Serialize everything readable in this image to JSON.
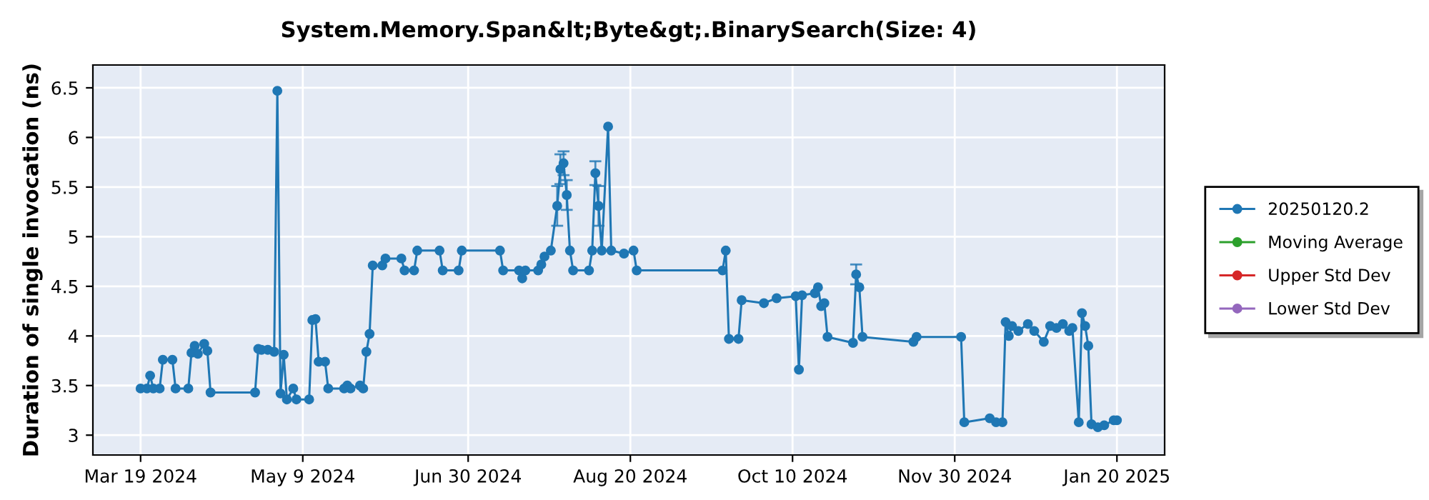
{
  "chart_data": {
    "type": "line",
    "title": "System.Memory.Span&lt;Byte&gt;.BinarySearch(Size: 4)",
    "ylabel": "Duration of single invocation (ns)",
    "x": [
      "2024-03-19",
      "2024-03-21",
      "2024-03-22",
      "2024-03-23",
      "2024-03-25",
      "2024-03-26",
      "2024-03-29",
      "2024-03-30",
      "2024-04-03",
      "2024-04-04",
      "2024-04-05",
      "2024-04-06",
      "2024-04-08",
      "2024-04-09",
      "2024-04-10",
      "2024-04-24",
      "2024-04-25",
      "2024-04-26",
      "2024-04-28",
      "2024-04-30",
      "2024-05-01",
      "2024-05-02",
      "2024-05-03",
      "2024-05-04",
      "2024-05-06",
      "2024-05-07",
      "2024-05-11",
      "2024-05-12",
      "2024-05-13",
      "2024-05-14",
      "2024-05-16",
      "2024-05-17",
      "2024-05-22",
      "2024-05-23",
      "2024-05-24",
      "2024-05-27",
      "2024-05-28",
      "2024-05-29",
      "2024-05-30",
      "2024-05-31",
      "2024-06-03",
      "2024-06-04",
      "2024-06-09",
      "2024-06-10",
      "2024-06-13",
      "2024-06-14",
      "2024-06-21",
      "2024-06-22",
      "2024-06-27",
      "2024-06-28",
      "2024-07-10",
      "2024-07-11",
      "2024-07-16",
      "2024-07-17",
      "2024-07-18",
      "2024-07-22",
      "2024-07-23",
      "2024-07-24",
      "2024-07-26",
      "2024-07-28",
      "2024-07-29",
      "2024-07-30",
      "2024-07-31",
      "2024-08-01",
      "2024-08-02",
      "2024-08-07",
      "2024-08-08",
      "2024-08-09",
      "2024-08-10",
      "2024-08-11",
      "2024-08-13",
      "2024-08-14",
      "2024-08-18",
      "2024-08-21",
      "2024-08-22",
      "2024-09-18",
      "2024-09-19",
      "2024-09-20",
      "2024-09-23",
      "2024-09-24",
      "2024-10-01",
      "2024-10-05",
      "2024-10-11",
      "2024-10-12",
      "2024-10-13",
      "2024-10-17",
      "2024-10-18",
      "2024-10-19",
      "2024-10-20",
      "2024-10-21",
      "2024-10-29",
      "2024-10-30",
      "2024-10-31",
      "2024-11-01",
      "2024-11-17",
      "2024-11-18",
      "2024-12-02",
      "2024-12-03",
      "2024-12-11",
      "2024-12-13",
      "2024-12-15",
      "2024-12-16",
      "2024-12-17",
      "2024-12-18",
      "2024-12-20",
      "2024-12-23",
      "2024-12-25",
      "2024-12-28",
      "2024-12-30",
      "2025-01-01",
      "2025-01-03",
      "2025-01-05",
      "2025-01-06",
      "2025-01-08",
      "2025-01-09",
      "2025-01-10",
      "2025-01-11",
      "2025-01-12",
      "2025-01-14",
      "2025-01-16",
      "2025-01-19",
      "2025-01-20"
    ],
    "series": [
      {
        "name": "20250120.2",
        "color": "#1f77b4",
        "values": [
          3.47,
          3.47,
          3.6,
          3.47,
          3.47,
          3.76,
          3.76,
          3.47,
          3.47,
          3.83,
          3.9,
          3.82,
          3.92,
          3.85,
          3.43,
          3.43,
          3.87,
          3.86,
          3.86,
          3.84,
          6.47,
          3.42,
          3.81,
          3.36,
          3.47,
          3.36,
          3.36,
          4.16,
          4.17,
          3.74,
          3.74,
          3.47,
          3.47,
          3.5,
          3.47,
          3.5,
          3.47,
          3.84,
          4.02,
          4.71,
          4.71,
          4.78,
          4.78,
          4.66,
          4.66,
          4.86,
          4.86,
          4.66,
          4.66,
          4.86,
          4.86,
          4.66,
          4.66,
          4.58,
          4.66,
          4.66,
          4.72,
          4.8,
          4.86,
          5.31,
          5.68,
          5.74,
          5.42,
          4.86,
          4.66,
          4.66,
          4.86,
          5.64,
          5.31,
          4.86,
          6.11,
          4.86,
          4.83,
          4.86,
          4.66,
          4.66,
          4.86,
          3.97,
          3.97,
          4.36,
          4.33,
          4.38,
          4.4,
          3.66,
          4.41,
          4.43,
          4.49,
          4.3,
          4.33,
          3.99,
          3.93,
          4.62,
          4.49,
          3.99,
          3.94,
          3.99,
          3.99,
          3.13,
          3.17,
          3.13,
          3.13,
          4.14,
          4.0,
          4.1,
          4.05,
          4.12,
          4.05,
          3.94,
          4.1,
          4.08,
          4.12,
          4.05,
          4.08,
          3.13,
          4.23,
          4.1,
          3.9,
          3.11,
          3.08,
          3.1,
          3.15,
          3.15
        ],
        "errors": [
          null,
          null,
          null,
          null,
          null,
          null,
          null,
          null,
          null,
          null,
          null,
          null,
          null,
          null,
          null,
          null,
          null,
          null,
          null,
          null,
          null,
          null,
          null,
          null,
          null,
          null,
          null,
          null,
          null,
          null,
          null,
          null,
          null,
          null,
          null,
          null,
          null,
          null,
          null,
          null,
          null,
          null,
          null,
          null,
          null,
          null,
          null,
          null,
          null,
          null,
          null,
          null,
          null,
          null,
          null,
          null,
          null,
          null,
          null,
          0.2,
          0.15,
          0.12,
          0.15,
          null,
          null,
          null,
          null,
          0.12,
          0.2,
          null,
          null,
          null,
          null,
          null,
          null,
          null,
          null,
          null,
          null,
          null,
          null,
          null,
          null,
          null,
          null,
          null,
          null,
          null,
          null,
          null,
          null,
          0.1,
          null,
          null,
          null,
          null,
          null,
          null,
          null,
          null,
          null,
          null,
          null,
          null,
          null,
          null,
          null,
          null,
          null,
          null,
          null,
          null,
          null,
          null,
          null,
          null,
          null,
          null,
          null,
          null,
          null,
          null
        ]
      },
      {
        "name": "Moving Average",
        "color": "#2ca02c",
        "values": [
          null,
          null,
          null,
          null,
          null,
          null,
          null,
          null,
          null,
          null,
          null,
          null,
          null,
          null,
          null,
          null,
          null,
          null,
          null,
          null,
          null,
          null,
          null,
          null,
          null,
          null,
          null,
          null,
          null,
          null,
          null,
          null,
          null,
          null,
          null,
          null,
          null,
          null,
          null,
          null,
          null,
          null,
          null,
          null,
          null,
          null,
          null,
          null,
          null,
          null,
          null,
          null,
          null,
          null,
          null,
          null,
          null,
          null,
          null,
          null,
          null,
          null,
          null,
          null,
          null,
          null,
          null,
          null,
          null,
          null,
          null,
          null,
          null,
          null,
          null,
          null,
          null,
          null,
          null,
          null,
          null,
          null,
          null,
          null,
          null,
          null,
          null,
          null,
          null,
          null,
          null,
          null,
          null,
          null,
          null,
          null,
          null,
          null,
          null,
          null,
          null,
          null,
          null,
          null,
          null,
          null,
          null,
          null,
          null,
          null,
          null,
          null,
          null,
          null,
          null,
          null,
          null,
          null,
          null,
          null,
          null,
          null
        ]
      },
      {
        "name": "Upper Std Dev",
        "color": "#d62728",
        "values": [
          null,
          null,
          null,
          null,
          null,
          null,
          null,
          null,
          null,
          null,
          null,
          null,
          null,
          null,
          null,
          null,
          null,
          null,
          null,
          null,
          null,
          null,
          null,
          null,
          null,
          null,
          null,
          null,
          null,
          null,
          null,
          null,
          null,
          null,
          null,
          null,
          null,
          null,
          null,
          null,
          null,
          null,
          null,
          null,
          null,
          null,
          null,
          null,
          null,
          null,
          null,
          null,
          null,
          null,
          null,
          null,
          null,
          null,
          null,
          null,
          null,
          null,
          null,
          null,
          null,
          null,
          null,
          null,
          null,
          null,
          null,
          null,
          null,
          null,
          null,
          null,
          null,
          null,
          null,
          null,
          null,
          null,
          null,
          null,
          null,
          null,
          null,
          null,
          null,
          null,
          null,
          null,
          null,
          null,
          null,
          null,
          null,
          null,
          null,
          null,
          null,
          null,
          null,
          null,
          null,
          null,
          null,
          null,
          null,
          null,
          null,
          null,
          null,
          null,
          null,
          null,
          null,
          null,
          null,
          null,
          null,
          null
        ]
      },
      {
        "name": "Lower Std Dev",
        "color": "#9467bd",
        "values": [
          null,
          null,
          null,
          null,
          null,
          null,
          null,
          null,
          null,
          null,
          null,
          null,
          null,
          null,
          null,
          null,
          null,
          null,
          null,
          null,
          null,
          null,
          null,
          null,
          null,
          null,
          null,
          null,
          null,
          null,
          null,
          null,
          null,
          null,
          null,
          null,
          null,
          null,
          null,
          null,
          null,
          null,
          null,
          null,
          null,
          null,
          null,
          null,
          null,
          null,
          null,
          null,
          null,
          null,
          null,
          null,
          null,
          null,
          null,
          null,
          null,
          null,
          null,
          null,
          null,
          null,
          null,
          null,
          null,
          null,
          null,
          null,
          null,
          null,
          null,
          null,
          null,
          null,
          null,
          null,
          null,
          null,
          null,
          null,
          null,
          null,
          null,
          null,
          null,
          null,
          null,
          null,
          null,
          null,
          null,
          null,
          null,
          null,
          null,
          null,
          null,
          null,
          null,
          null,
          null,
          null,
          null,
          null,
          null,
          null,
          null,
          null,
          null,
          null,
          null,
          null,
          null,
          null,
          null,
          null,
          null,
          null
        ]
      }
    ],
    "xlim": [
      "2024-03-04",
      "2025-02-04"
    ],
    "xticks": [
      {
        "value": "2024-03-19",
        "label": "Mar 19 2024"
      },
      {
        "value": "2024-05-09",
        "label": "May 9 2024"
      },
      {
        "value": "2024-06-30",
        "label": "Jun 30 2024"
      },
      {
        "value": "2024-08-20",
        "label": "Aug 20 2024"
      },
      {
        "value": "2024-10-10",
        "label": "Oct 10 2024"
      },
      {
        "value": "2024-11-30",
        "label": "Nov 30 2024"
      },
      {
        "value": "2025-01-20",
        "label": "Jan 20 2025"
      }
    ],
    "ylim": [
      2.8,
      6.73
    ],
    "yticks": [
      3,
      3.5,
      4,
      4.5,
      5,
      5.5,
      6,
      6.5
    ],
    "grid": true,
    "legend": "right",
    "marker": "circle",
    "line_style": "solid"
  }
}
